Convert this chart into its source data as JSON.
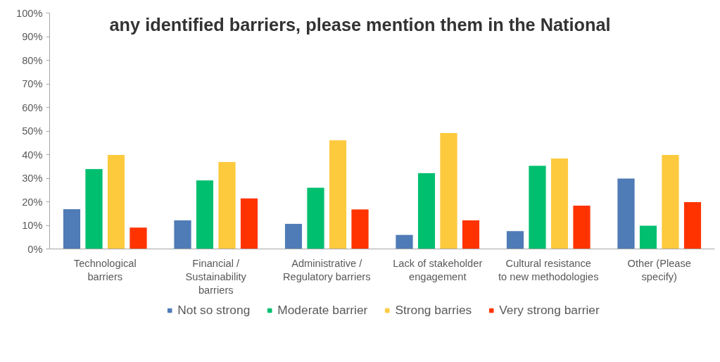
{
  "chart_data": {
    "type": "bar",
    "title": "any identified barriers, please mention them in the National",
    "categories": [
      "Technological barriers",
      "Financial / Sustainability barriers",
      "Administrative / Regulatory barriers",
      "Lack of stakeholder engagement",
      "Cultural resistance to new methodologies",
      "Other (Please specify)"
    ],
    "series": [
      {
        "name": "Not so strong",
        "color": "#4f7bb6",
        "values": [
          17,
          12.3,
          10.8,
          6.1,
          7.7,
          30
        ]
      },
      {
        "name": "Moderate barrier",
        "color": "#00bf6f",
        "values": [
          34,
          29.2,
          26.1,
          32.3,
          35.4,
          10
        ]
      },
      {
        "name": "Strong barries",
        "color": "#fdca3e",
        "values": [
          40,
          37,
          46.2,
          49.3,
          38.5,
          40
        ]
      },
      {
        "name": "Very strong barrier",
        "color": "#ff3300",
        "values": [
          9.2,
          21.6,
          16.9,
          12.3,
          18.5,
          20
        ]
      }
    ],
    "ylim": [
      0,
      100
    ],
    "yticks": [
      {
        "value": 0,
        "label": "0%"
      },
      {
        "value": 10,
        "label": "10%"
      },
      {
        "value": 20,
        "label": "20%"
      },
      {
        "value": 30,
        "label": "30%"
      },
      {
        "value": 40,
        "label": "40%"
      },
      {
        "value": 50,
        "label": "50%"
      },
      {
        "value": 60,
        "label": "60%"
      },
      {
        "value": 70,
        "label": "70%"
      },
      {
        "value": 80,
        "label": "80%"
      },
      {
        "value": 90,
        "label": "90%"
      },
      {
        "value": 100,
        "label": "100%"
      }
    ],
    "grid": false,
    "legend": "bottom"
  }
}
